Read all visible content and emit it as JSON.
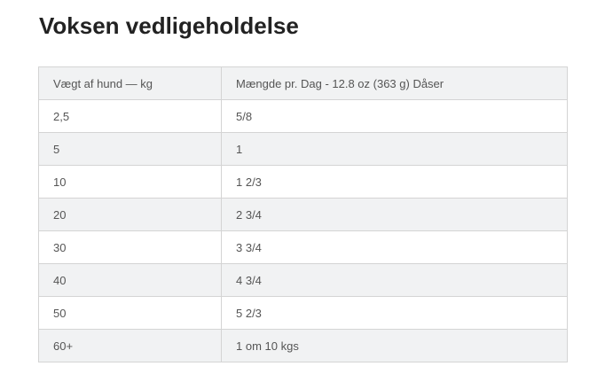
{
  "title": "Voksen vedligeholdelse",
  "headers": [
    "Vægt af hund — kg",
    "Mængde pr. Dag - 12.8 oz (363 g) Dåser"
  ],
  "rows": [
    [
      "2,5",
      "5/8"
    ],
    [
      "5",
      "1"
    ],
    [
      "10",
      "1 2/3"
    ],
    [
      "20",
      "2 3/4"
    ],
    [
      "30",
      "3 3/4"
    ],
    [
      "40",
      "4 3/4"
    ],
    [
      "50",
      "5 2/3"
    ],
    [
      "60+",
      "1 om 10 kgs"
    ]
  ]
}
